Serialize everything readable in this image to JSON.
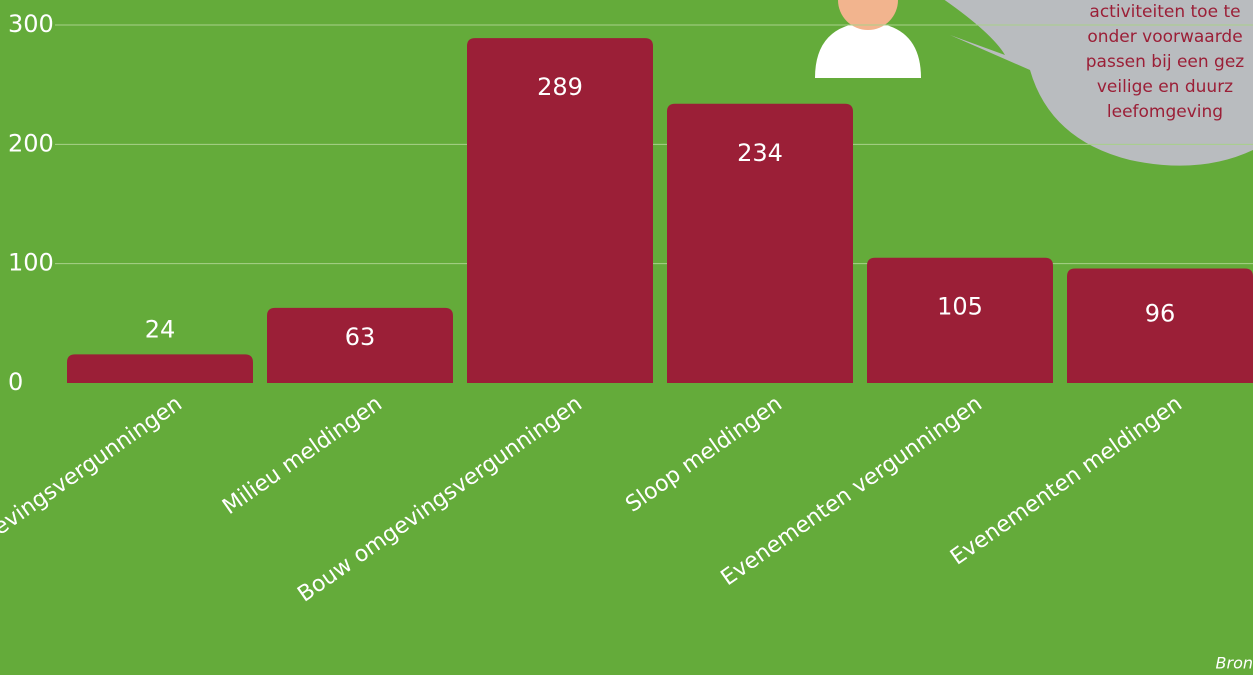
{
  "chart_data": {
    "type": "bar",
    "categories": [
      "evingsvergunningen",
      "Milieu meldingen",
      "Bouw omgevingsvergunningen",
      "Sloop meldingen",
      "Evenementen vergunningen",
      "Evenementen meldingen"
    ],
    "values": [
      24,
      63,
      289,
      234,
      105,
      96
    ],
    "color": "#9b1f37",
    "ylim": [
      0,
      300
    ],
    "yticks": [
      0,
      100,
      200,
      300
    ],
    "grid": true,
    "annotation": [
      "activiteiten toe te",
      "onder voorwaarde",
      "passen bij een gez",
      "veilige en duurz",
      "leefomgeving"
    ],
    "source": "Bron"
  }
}
